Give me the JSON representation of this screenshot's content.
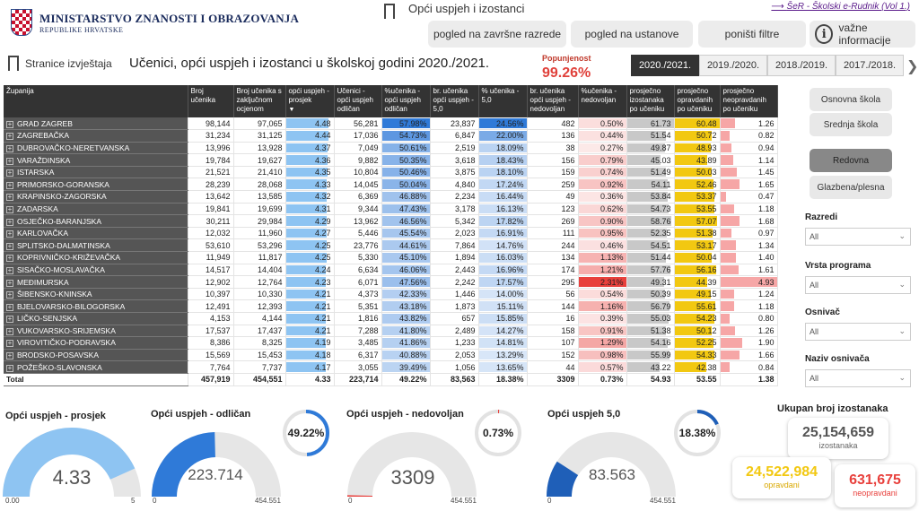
{
  "header": {
    "ministry_line1": "MINISTARSTVO ZNANOSTI I OBRAZOVANJA",
    "ministry_line2": "REPUBLIKE HRVATSKE",
    "section_title": "Opći uspjeh i izostanci",
    "ext_link": "ŠeR - Školski e-Rudnik (Vol 1.)",
    "stranice": "Stranice izvještaja",
    "page_title": "Učenici, opći uspjeh i izostanci u školskoj godini 2020./2021.",
    "popunjenost_label": "Popunjenost",
    "popunjenost_value": "99.26%",
    "buttons": [
      "pogled na završne razrede",
      "pogled na ustanove",
      "poništi filtre"
    ],
    "info_label": "važne informacije",
    "info_icon": "i",
    "year_tabs": [
      "2020./2021.",
      "2019./2020.",
      "2018./2019.",
      "2017./2018."
    ],
    "more_arrow": "❯"
  },
  "table": {
    "columns": [
      "Županija",
      "Broj učenika",
      "Broj učenika s zaključnom ocjenom",
      "opći uspjeh - prosjek",
      "Učenici - opći uspjeh odličan",
      "%učenika - opći uspjeh odličan",
      "br. učenika opći uspjeh - 5,0",
      "% učenika - 5,0",
      "br. učenika opći uspjeh - nedovoljan",
      "%učenika - nedovoljan",
      "prosječno izostanaka po učeniku",
      "prosječno opravdanih po učeniku",
      "prosječno neopravdanih po učeniku"
    ],
    "sort_marker": "▼",
    "row_expand": "+",
    "rows": [
      [
        "GRAD ZAGREB",
        "98,144",
        "97,065",
        "4.48",
        "56,281",
        "57.98%",
        "23,837",
        "24.56%",
        "482",
        "0.50%",
        "61.73",
        "60.48",
        "1.26"
      ],
      [
        "ZAGREBAČKA",
        "31,234",
        "31,125",
        "4.44",
        "17,036",
        "54.73%",
        "6,847",
        "22.00%",
        "136",
        "0.44%",
        "51.54",
        "50.72",
        "0.82"
      ],
      [
        "DUBROVAČKO-NERETVANSKA",
        "13,996",
        "13,928",
        "4.37",
        "7,049",
        "50.61%",
        "2,519",
        "18.09%",
        "38",
        "0.27%",
        "49.87",
        "48.93",
        "0.94"
      ],
      [
        "VARAŽDINSKA",
        "19,784",
        "19,627",
        "4.36",
        "9,882",
        "50.35%",
        "3,618",
        "18.43%",
        "156",
        "0.79%",
        "45.03",
        "43.89",
        "1.14"
      ],
      [
        "ISTARSKA",
        "21,521",
        "21,410",
        "4.35",
        "10,804",
        "50.46%",
        "3,875",
        "18.10%",
        "159",
        "0.74%",
        "51.49",
        "50.03",
        "1.45"
      ],
      [
        "PRIMORSKO-GORANSKA",
        "28,239",
        "28,068",
        "4.33",
        "14,045",
        "50.04%",
        "4,840",
        "17.24%",
        "259",
        "0.92%",
        "54.11",
        "52.46",
        "1.65"
      ],
      [
        "KRAPINSKO-ZAGORSKA",
        "13,642",
        "13,585",
        "4.32",
        "6,369",
        "46.88%",
        "2,234",
        "16.44%",
        "49",
        "0.36%",
        "53.84",
        "53.37",
        "0.47"
      ],
      [
        "ZADARSKA",
        "19,841",
        "19,699",
        "4.31",
        "9,344",
        "47.43%",
        "3,178",
        "16.13%",
        "123",
        "0.62%",
        "54.73",
        "53.55",
        "1.18"
      ],
      [
        "OSJEČKO-BARANJSKA",
        "30,211",
        "29,984",
        "4.29",
        "13,962",
        "46.56%",
        "5,342",
        "17.82%",
        "269",
        "0.90%",
        "58.76",
        "57.07",
        "1.68"
      ],
      [
        "KARLOVAČKA",
        "12,032",
        "11,960",
        "4.27",
        "5,446",
        "45.54%",
        "2,023",
        "16.91%",
        "111",
        "0.95%",
        "52.35",
        "51.38",
        "0.97"
      ],
      [
        "SPLITSKO-DALMATINSKA",
        "53,610",
        "53,296",
        "4.25",
        "23,776",
        "44.61%",
        "7,864",
        "14.76%",
        "244",
        "0.46%",
        "54.51",
        "53.17",
        "1.34"
      ],
      [
        "KOPRIVNIČKO-KRIŽEVAČKA",
        "11,949",
        "11,817",
        "4.25",
        "5,330",
        "45.10%",
        "1,894",
        "16.03%",
        "134",
        "1.13%",
        "51.44",
        "50.04",
        "1.40"
      ],
      [
        "SISAČKO-MOSLAVAČKA",
        "14,517",
        "14,404",
        "4.24",
        "6,634",
        "46.06%",
        "2,443",
        "16.96%",
        "174",
        "1.21%",
        "57.76",
        "56.16",
        "1.61"
      ],
      [
        "MEĐIMURSKA",
        "12,902",
        "12,764",
        "4.23",
        "6,071",
        "47.56%",
        "2,242",
        "17.57%",
        "295",
        "2.31%",
        "49.31",
        "44.39",
        "4.93"
      ],
      [
        "ŠIBENSKO-KNINSKA",
        "10,397",
        "10,330",
        "4.21",
        "4,373",
        "42.33%",
        "1,446",
        "14.00%",
        "56",
        "0.54%",
        "50.39",
        "49.15",
        "1.24"
      ],
      [
        "BJELOVARSKO-BILOGORSKA",
        "12,491",
        "12,393",
        "4.21",
        "5,351",
        "43.18%",
        "1,873",
        "15.11%",
        "144",
        "1.16%",
        "56.79",
        "55.61",
        "1.18"
      ],
      [
        "LIČKO-SENJSKA",
        "4,153",
        "4,144",
        "4.21",
        "1,816",
        "43.82%",
        "657",
        "15.85%",
        "16",
        "0.39%",
        "55.03",
        "54.23",
        "0.80"
      ],
      [
        "VUKOVARSKO-SRIJEMSKA",
        "17,537",
        "17,437",
        "4.21",
        "7,288",
        "41.80%",
        "2,489",
        "14.27%",
        "158",
        "0.91%",
        "51.38",
        "50.12",
        "1.26"
      ],
      [
        "VIROVITIČKO-PODRAVSKA",
        "8,386",
        "8,325",
        "4.19",
        "3,485",
        "41.86%",
        "1,233",
        "14.81%",
        "107",
        "1.29%",
        "54.16",
        "52.25",
        "1.90"
      ],
      [
        "BRODSKO-POSAVSKA",
        "15,569",
        "15,453",
        "4.18",
        "6,317",
        "40.88%",
        "2,053",
        "13.29%",
        "152",
        "0.98%",
        "55.99",
        "54.33",
        "1.66"
      ],
      [
        "POŽEŠKO-SLAVONSKA",
        "7,764",
        "7,737",
        "4.17",
        "3,055",
        "39.49%",
        "1,056",
        "13.65%",
        "44",
        "0.57%",
        "43.22",
        "42.38",
        "0.84"
      ]
    ],
    "total": [
      "Total",
      "457,919",
      "454,551",
      "4.33",
      "223,714",
      "49.22%",
      "83,563",
      "18.38%",
      "3309",
      "0.73%",
      "54.93",
      "53.55",
      "1.38"
    ]
  },
  "filters": {
    "school_buttons": [
      "Osnovna škola",
      "Srednja škola"
    ],
    "program_buttons": [
      "Redovna",
      "Glazbena/plesna"
    ],
    "dropdowns": [
      {
        "label": "Razredi",
        "value": "All"
      },
      {
        "label": "Vrsta programa",
        "value": "All"
      },
      {
        "label": "Osnivač",
        "value": "All"
      },
      {
        "label": "Naziv osnivača",
        "value": "All"
      }
    ],
    "chevron": "⌄"
  },
  "gauges": {
    "prosjek": {
      "title": "Opći uspjeh - prosjek",
      "value": 4.33,
      "label": "4.33",
      "min": "0.00",
      "max": "5",
      "max_value": 5
    },
    "odlican": {
      "title": "Opći uspjeh - odličan",
      "value": 223714,
      "label": "223.714",
      "min": "0",
      "max": "454.551",
      "max_value": 454551,
      "pct_label": "49.22%",
      "pct": 49.22
    },
    "nedovoljan": {
      "title": "Opći uspjeh - nedovoljan",
      "value": 3309,
      "label": "3309",
      "min": "0",
      "max": "454.551",
      "max_value": 454551,
      "pct_label": "0.73%",
      "pct": 0.73
    },
    "petica": {
      "title": "Opći uspjeh 5,0",
      "value": 83563,
      "label": "83.563",
      "min": "0",
      "max": "454.551",
      "max_value": 454551,
      "pct_label": "18.38%",
      "pct": 18.38
    }
  },
  "kpi": {
    "title": "Ukupan broj izostanaka",
    "total": "25,154,659",
    "total_sub": "izostanaka",
    "opravdani": "24,522,984",
    "opravdani_sub": "opravdani",
    "neopravdani": "631,675",
    "neopravdani_sub": "neopravdani"
  },
  "colors": {
    "blue_strong": "#2f7ad8",
    "blue_light": "#8ec4f2",
    "yellow": "#f2c811",
    "red": "#e8403c",
    "red_light": "#f6a6a6",
    "gray_cell": "#c8c8c8"
  }
}
